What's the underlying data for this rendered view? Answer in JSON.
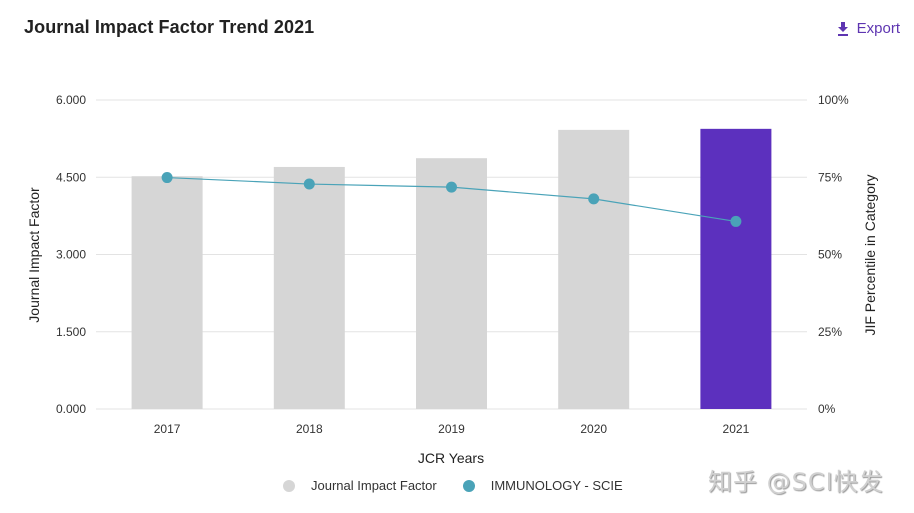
{
  "header": {
    "title": "Journal Impact Factor Trend 2021",
    "export_label": "Export",
    "export_icon": "download-icon"
  },
  "colors": {
    "bar_default": "#d6d6d6",
    "bar_highlight": "#5c30be",
    "line": "#4aa3b8",
    "accent": "#5e35b1",
    "grid": "#e3e3e3"
  },
  "chart_data": {
    "type": "bar",
    "title": "Journal Impact Factor Trend 2021",
    "xlabel": "JCR Years",
    "ylabel": "Journal Impact Factor",
    "y2label": "JIF Percentile in Category",
    "categories": [
      "2017",
      "2018",
      "2019",
      "2020",
      "2021"
    ],
    "ylim": [
      0,
      6
    ],
    "yticks": [
      "0.000",
      "1.500",
      "3.000",
      "4.500",
      "6.000"
    ],
    "y2lim": [
      0,
      100
    ],
    "y2ticks": [
      "0%",
      "25%",
      "50%",
      "75%",
      "100%"
    ],
    "grid": true,
    "highlight_category": "2021",
    "series": [
      {
        "name": "Journal Impact Factor",
        "type": "bar",
        "axis": "left",
        "values": [
          4.52,
          4.7,
          4.87,
          5.42,
          5.44
        ]
      },
      {
        "name": "IMMUNOLOGY - SCIE",
        "type": "line",
        "axis": "right",
        "values": [
          74.9,
          72.8,
          71.8,
          68.0,
          60.7
        ]
      }
    ],
    "legend_position": "bottom-center"
  },
  "legend": [
    {
      "label": "Journal Impact Factor",
      "color": "#d6d6d6"
    },
    {
      "label": "IMMUNOLOGY - SCIE",
      "color": "#4aa3b8"
    }
  ],
  "watermark": "知乎 @SCI快发"
}
